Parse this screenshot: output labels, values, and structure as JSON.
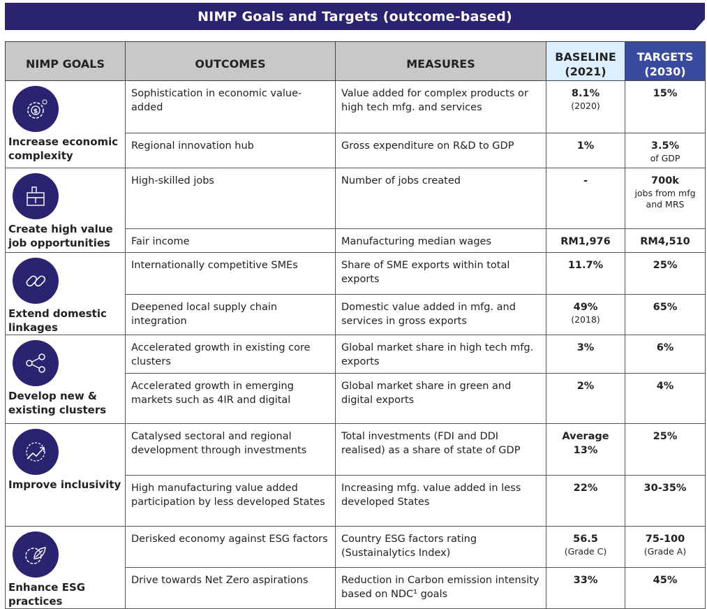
{
  "title": "NIMP Goals and Targets (outcome-based)",
  "headers": {
    "goals": "NIMP GOALS",
    "outcomes": "OUTCOMES",
    "measures": "MEASURES",
    "baseline": "BASELINE (2021)",
    "targets": "TARGETS (2030)"
  },
  "colors": {
    "banner": "#2b2270",
    "header_gray": "#c8c8c8",
    "baseline_bg": "#dcefff",
    "targets_bg": "#3a4a9c"
  },
  "goals": [
    {
      "label": "Increase economic complexity",
      "icon": "gear-dollar-icon",
      "rows": [
        {
          "outcome": "Sophistication in economic value-added",
          "measure": "Value added for complex products or high tech mfg. and services",
          "baseline": "8.1%",
          "baseline_note": "(2020)",
          "target": "15%",
          "target_note": ""
        },
        {
          "outcome": "Regional innovation hub",
          "measure": "Gross expenditure on R&D to GDP",
          "baseline": "1%",
          "baseline_note": "",
          "target": "3.5%",
          "target_note": "of GDP"
        }
      ]
    },
    {
      "label": "Create high value job opportunities",
      "icon": "briefcase-icon",
      "rows": [
        {
          "outcome": "High-skilled jobs",
          "measure": "Number of jobs created",
          "baseline": "-",
          "baseline_note": "",
          "target": "700k",
          "target_note": "jobs from mfg and MRS"
        },
        {
          "outcome": "Fair income",
          "measure": "Manufacturing median wages",
          "baseline": "RM1,976",
          "baseline_note": "",
          "target": "RM4,510",
          "target_note": ""
        }
      ]
    },
    {
      "label": "Extend domestic linkages",
      "icon": "chain-link-icon",
      "rows": [
        {
          "outcome": "Internationally competitive SMEs",
          "measure": "Share of SME exports within total exports",
          "baseline": "11.7%",
          "baseline_note": "",
          "target": "25%",
          "target_note": ""
        },
        {
          "outcome": "Deepened local supply chain integration",
          "measure": "Domestic value added in mfg. and services in gross exports",
          "baseline": "49%",
          "baseline_note": "(2018)",
          "target": "65%",
          "target_note": ""
        }
      ]
    },
    {
      "label": "Develop new & existing clusters",
      "icon": "share-nodes-icon",
      "rows": [
        {
          "outcome": "Accelerated growth in existing core clusters",
          "measure": "Global market share in high tech mfg. exports",
          "baseline": "3%",
          "baseline_note": "",
          "target": "6%",
          "target_note": ""
        },
        {
          "outcome": "Accelerated growth in emerging markets such as 4IR and digital",
          "measure": "Global market share in green and digital exports",
          "baseline": "2%",
          "baseline_note": "",
          "target": "4%",
          "target_note": ""
        }
      ]
    },
    {
      "label": "Improve inclusivity",
      "icon": "growth-arrow-icon",
      "rows": [
        {
          "outcome": "Catalysed sectoral and regional development through investments",
          "measure": "Total investments (FDI and DDI realised) as a share of state of GDP",
          "baseline": "Average 13%",
          "baseline_note": "",
          "target": "25%",
          "target_note": ""
        },
        {
          "outcome": "High manufacturing value added participation by less developed States",
          "measure": "Increasing mfg. value added in less developed States",
          "baseline": "22%",
          "baseline_note": "",
          "target": "30-35%",
          "target_note": ""
        }
      ]
    },
    {
      "label": "Enhance ESG practices",
      "icon": "leaf-gear-icon",
      "rows": [
        {
          "outcome": "Derisked economy against ESG factors",
          "measure": "Country ESG factors rating (Sustainalytics Index)",
          "baseline": "56.5",
          "baseline_note": "(Grade C)",
          "target": "75-100",
          "target_note": "(Grade A)"
        },
        {
          "outcome": "Drive towards Net Zero aspirations",
          "measure": "Reduction in Carbon emission intensity based on NDC¹ goals",
          "baseline": "33%",
          "baseline_note": "",
          "target": "45%",
          "target_note": ""
        }
      ]
    }
  ]
}
